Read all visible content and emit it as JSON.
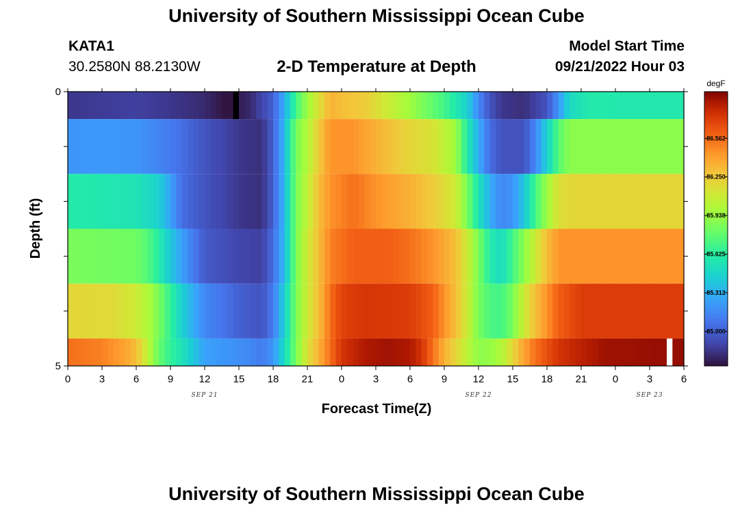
{
  "header": {
    "title": "University of Southern Mississippi Ocean Cube",
    "station_name": "KATA1",
    "station_coords": "30.2580N  88.2130W",
    "plot_title": "2-D Temperature at Depth",
    "model_start_label": "Model Start Time",
    "model_start_value": "09/21/2022 Hour 03"
  },
  "footer": {
    "title": "University of Southern Mississippi Ocean Cube"
  },
  "chart_data": {
    "type": "heatmap",
    "title": "2-D Temperature at Depth",
    "xlabel": "Forecast Time(Z)",
    "ylabel": "Depth (ft)",
    "colorbar_unit": "degF",
    "x_tick_labels": [
      "0",
      "3",
      "6",
      "9",
      "12",
      "15",
      "18",
      "21",
      "0",
      "3",
      "6",
      "9",
      "12",
      "15",
      "18",
      "21",
      "0",
      "3",
      "6"
    ],
    "date_labels": [
      {
        "label": "SEP 21",
        "tick_index": 4
      },
      {
        "label": "SEP 22",
        "tick_index": 12
      },
      {
        "label": "SEP 23",
        "tick_index": 17
      }
    ],
    "y_tick_labels": [
      {
        "value": 0,
        "label": "0"
      },
      {
        "value": 5,
        "label": "5"
      }
    ],
    "ylim": [
      0,
      5
    ],
    "x_hours_range": [
      0,
      54
    ],
    "depth_bands": [
      {
        "top": 0,
        "bottom": 0.5
      },
      {
        "top": 0.5,
        "bottom": 1.5
      },
      {
        "top": 1.5,
        "bottom": 2.5
      },
      {
        "top": 2.5,
        "bottom": 3.5
      },
      {
        "top": 3.5,
        "bottom": 4.5
      },
      {
        "top": 4.5,
        "bottom": 5
      }
    ],
    "rows_keyframes": [
      [
        [
          0,
          84.85
        ],
        [
          6,
          84.88
        ],
        [
          9,
          84.85
        ],
        [
          12,
          84.8
        ],
        [
          14,
          84.72
        ],
        [
          16,
          84.8
        ],
        [
          18,
          85.0
        ],
        [
          19,
          85.3
        ],
        [
          20,
          85.7
        ],
        [
          21,
          85.95
        ],
        [
          22,
          86.15
        ],
        [
          23,
          86.35
        ],
        [
          24,
          86.3
        ],
        [
          26,
          86.25
        ],
        [
          28,
          86.1
        ],
        [
          30,
          85.95
        ],
        [
          33,
          85.7
        ],
        [
          35,
          85.45
        ],
        [
          36,
          85.15
        ],
        [
          37,
          84.95
        ],
        [
          38,
          84.85
        ],
        [
          40,
          84.82
        ],
        [
          42,
          84.95
        ],
        [
          43,
          85.2
        ],
        [
          44,
          85.5
        ],
        [
          46,
          85.6
        ],
        [
          48,
          85.58
        ],
        [
          54,
          85.58
        ]
      ],
      [
        [
          0,
          85.2
        ],
        [
          3,
          85.22
        ],
        [
          6,
          85.2
        ],
        [
          9,
          85.1
        ],
        [
          12,
          84.95
        ],
        [
          15,
          84.85
        ],
        [
          17,
          84.82
        ],
        [
          18,
          85.0
        ],
        [
          19,
          85.35
        ],
        [
          20,
          85.85
        ],
        [
          21,
          86.0
        ],
        [
          22,
          86.25
        ],
        [
          23,
          86.45
        ],
        [
          25,
          86.45
        ],
        [
          27,
          86.35
        ],
        [
          30,
          86.2
        ],
        [
          32,
          86.15
        ],
        [
          34,
          85.95
        ],
        [
          35,
          85.6
        ],
        [
          36,
          85.3
        ],
        [
          37,
          85.05
        ],
        [
          38,
          84.95
        ],
        [
          40,
          84.95
        ],
        [
          41,
          85.15
        ],
        [
          42,
          85.45
        ],
        [
          43,
          85.75
        ],
        [
          44,
          85.9
        ],
        [
          54,
          85.9
        ]
      ],
      [
        [
          0,
          85.6
        ],
        [
          6,
          85.55
        ],
        [
          8,
          85.45
        ],
        [
          9,
          85.25
        ],
        [
          10,
          85.05
        ],
        [
          12,
          84.95
        ],
        [
          15,
          84.85
        ],
        [
          17,
          84.82
        ],
        [
          18,
          85.0
        ],
        [
          19,
          85.35
        ],
        [
          20,
          85.85
        ],
        [
          21,
          86.05
        ],
        [
          22,
          86.3
        ],
        [
          23,
          86.45
        ],
        [
          25,
          86.55
        ],
        [
          27,
          86.45
        ],
        [
          30,
          86.35
        ],
        [
          32,
          86.25
        ],
        [
          34,
          86.1
        ],
        [
          35,
          85.85
        ],
        [
          36,
          85.55
        ],
        [
          37,
          85.3
        ],
        [
          38,
          85.15
        ],
        [
          39,
          85.2
        ],
        [
          40,
          85.4
        ],
        [
          41,
          85.7
        ],
        [
          42,
          85.95
        ],
        [
          43,
          86.15
        ],
        [
          44,
          86.2
        ],
        [
          54,
          86.2
        ]
      ],
      [
        [
          0,
          85.85
        ],
        [
          6,
          85.82
        ],
        [
          7,
          85.75
        ],
        [
          8,
          85.6
        ],
        [
          9,
          85.4
        ],
        [
          10,
          85.25
        ],
        [
          11,
          85.1
        ],
        [
          12,
          84.98
        ],
        [
          15,
          84.9
        ],
        [
          17,
          84.88
        ],
        [
          18,
          85.05
        ],
        [
          19,
          85.35
        ],
        [
          20,
          85.85
        ],
        [
          21,
          86.1
        ],
        [
          22,
          86.3
        ],
        [
          23,
          86.5
        ],
        [
          25,
          86.6
        ],
        [
          28,
          86.6
        ],
        [
          30,
          86.55
        ],
        [
          32,
          86.45
        ],
        [
          34,
          86.3
        ],
        [
          35,
          86.1
        ],
        [
          36,
          85.85
        ],
        [
          37,
          85.6
        ],
        [
          38,
          85.5
        ],
        [
          39,
          85.7
        ],
        [
          40,
          85.9
        ],
        [
          41,
          86.1
        ],
        [
          42,
          86.3
        ],
        [
          43,
          86.45
        ],
        [
          45,
          86.45
        ],
        [
          54,
          86.45
        ]
      ],
      [
        [
          0,
          86.2
        ],
        [
          4,
          86.18
        ],
        [
          6,
          86.1
        ],
        [
          7,
          86.0
        ],
        [
          8,
          85.85
        ],
        [
          9,
          85.65
        ],
        [
          10,
          85.45
        ],
        [
          11,
          85.3
        ],
        [
          12,
          85.15
        ],
        [
          15,
          85.0
        ],
        [
          17,
          84.95
        ],
        [
          18,
          85.1
        ],
        [
          19,
          85.45
        ],
        [
          20,
          85.85
        ],
        [
          21,
          86.1
        ],
        [
          22,
          86.3
        ],
        [
          23,
          86.55
        ],
        [
          24,
          86.7
        ],
        [
          26,
          86.75
        ],
        [
          30,
          86.72
        ],
        [
          32,
          86.6
        ],
        [
          33,
          86.45
        ],
        [
          34,
          86.3
        ],
        [
          35,
          86.1
        ],
        [
          36,
          85.85
        ],
        [
          37,
          85.72
        ],
        [
          38,
          85.7
        ],
        [
          39,
          85.85
        ],
        [
          40,
          86.1
        ],
        [
          41,
          86.3
        ],
        [
          42,
          86.45
        ],
        [
          43,
          86.6
        ],
        [
          45,
          86.72
        ],
        [
          48,
          86.72
        ],
        [
          54,
          86.72
        ]
      ],
      [
        [
          0,
          86.55
        ],
        [
          3,
          86.5
        ],
        [
          5,
          86.4
        ],
        [
          6,
          86.3
        ],
        [
          7,
          86.05
        ],
        [
          8,
          85.8
        ],
        [
          9,
          85.65
        ],
        [
          10,
          85.55
        ],
        [
          11,
          85.4
        ],
        [
          12,
          85.25
        ],
        [
          14,
          85.2
        ],
        [
          16,
          85.15
        ],
        [
          17,
          85.1
        ],
        [
          18,
          85.2
        ],
        [
          19,
          85.5
        ],
        [
          20,
          85.85
        ],
        [
          21,
          86.15
        ],
        [
          22,
          86.35
        ],
        [
          23,
          86.55
        ],
        [
          24,
          86.75
        ],
        [
          26,
          86.85
        ],
        [
          28,
          86.88
        ],
        [
          30,
          86.85
        ],
        [
          31,
          86.75
        ],
        [
          32,
          86.55
        ],
        [
          33,
          86.35
        ],
        [
          34,
          86.2
        ],
        [
          35,
          86.05
        ],
        [
          36,
          85.9
        ],
        [
          37,
          85.92
        ],
        [
          38,
          86.0
        ],
        [
          39,
          86.2
        ],
        [
          40,
          86.4
        ],
        [
          41,
          86.55
        ],
        [
          42,
          86.65
        ],
        [
          43,
          86.75
        ],
        [
          45,
          86.82
        ],
        [
          47,
          86.88
        ],
        [
          54,
          86.9
        ]
      ]
    ],
    "missing_cells": [
      {
        "row": 0,
        "hour": 14.5,
        "color": "#000000"
      },
      {
        "row": 5,
        "hour": 52.5,
        "color": "#ffffff"
      }
    ],
    "colorbar": {
      "ticks": [
        86.562,
        86.25,
        85.938,
        85.625,
        85.312,
        85.0
      ],
      "tick_labels": [
        "86.562",
        "86.250",
        "85.938",
        "85.625",
        "85.312",
        "85.000"
      ],
      "range": [
        84.72,
        86.94
      ]
    }
  }
}
